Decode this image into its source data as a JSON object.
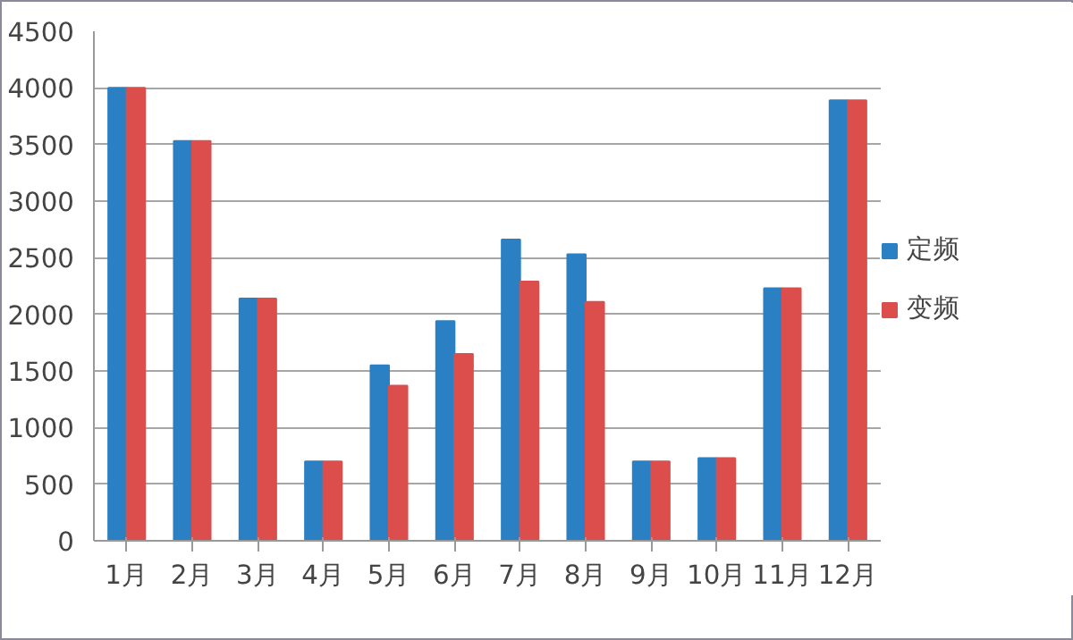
{
  "chart_data": {
    "type": "bar",
    "categories": [
      "1月",
      "2月",
      "3月",
      "4月",
      "5月",
      "6月",
      "7月",
      "8月",
      "9月",
      "10月",
      "11月",
      "12月"
    ],
    "series": [
      {
        "name": "定频",
        "color": "#2a80c2",
        "values": [
          4000,
          3530,
          2140,
          700,
          1550,
          1940,
          2660,
          2530,
          700,
          730,
          2230,
          3890
        ]
      },
      {
        "name": "变频",
        "color": "#dc4e4c",
        "values": [
          4000,
          3530,
          2140,
          700,
          1370,
          1650,
          2290,
          2110,
          700,
          730,
          2230,
          3890
        ]
      }
    ],
    "ylim": [
      0,
      4500
    ],
    "yticks": [
      0,
      500,
      1000,
      1500,
      2000,
      2500,
      3000,
      3500,
      4000,
      4500
    ],
    "grid": "y",
    "legend": "right"
  }
}
